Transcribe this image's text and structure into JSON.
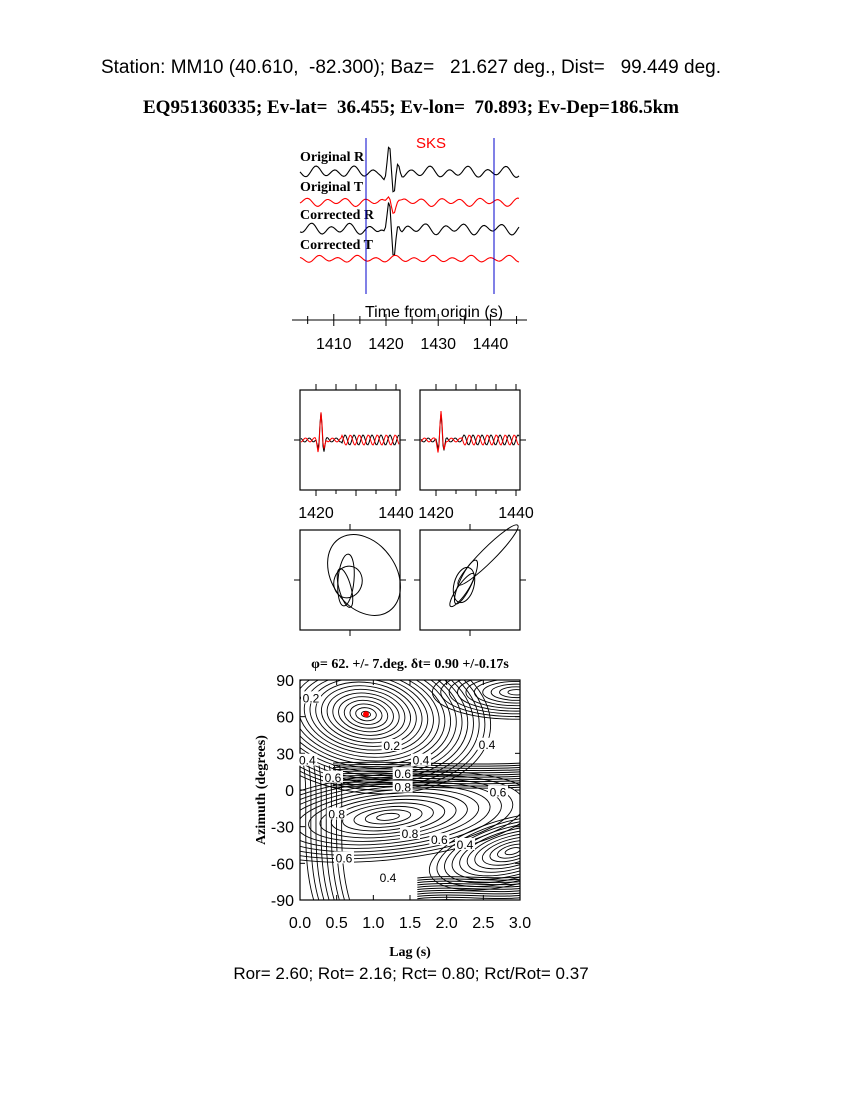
{
  "header": {
    "station_line": "Station: MM10 (40.610,  -82.300); Baz=   21.627 deg., Dist=   99.449 deg.",
    "event_line": "EQ951360335; Ev-lat=  36.455; Ev-lon=  70.893; Ev-Dep=186.5km"
  },
  "footer": {
    "ratios": "Ror= 2.60; Rot= 2.16; Rct= 0.80; Rct/Rot= 0.37"
  },
  "chart_data": [
    {
      "type": "line",
      "panel": "seismograms",
      "phase_label": "SKS",
      "xlabel": "Time from origin (s)",
      "x_ticks": [
        1410,
        1420,
        1430,
        1440
      ],
      "xlim": [
        1402,
        1447
      ],
      "window": [
        1416,
        1441
      ],
      "series": [
        {
          "name": "Original R",
          "color": "#000000"
        },
        {
          "name": "Original T",
          "color": "#ff0000"
        },
        {
          "name": "Corrected R",
          "color": "#000000"
        },
        {
          "name": "Corrected T",
          "color": "#ff0000"
        }
      ]
    },
    {
      "type": "line",
      "panel": "waveform-comparison",
      "x_ticks_left": [
        1420,
        1440
      ],
      "x_ticks_right": [
        1420,
        1440
      ],
      "xlim": [
        1416,
        1441
      ],
      "colors": {
        "black": "#000000",
        "red": "#ff0000"
      }
    },
    {
      "type": "scatter",
      "panel": "particle-motion",
      "note_panels": 2
    },
    {
      "type": "heatmap",
      "panel": "contour-map",
      "title": "φ= 62. +/- 7.deg. δt= 0.90 +/-0.17s",
      "xlabel": "Lag (s)",
      "ylabel": "Azimuth (degrees)",
      "xlim": [
        0,
        3
      ],
      "ylim": [
        -90,
        90
      ],
      "x_ticks": [
        "0.0",
        "0.5",
        "1.0",
        "1.5",
        "2.0",
        "2.5",
        "3.0"
      ],
      "y_ticks": [
        "90",
        "60",
        "30",
        "0",
        "-30",
        "-60",
        "-90"
      ],
      "best_fit": {
        "lag": 0.9,
        "azimuth": 62,
        "color": "#ff0000"
      },
      "contour_labels": [
        {
          "text": "0.2",
          "lag": 0.15,
          "azimuth": 75
        },
        {
          "text": "0.2",
          "lag": 1.25,
          "azimuth": 36
        },
        {
          "text": "0.4",
          "lag": 0.1,
          "azimuth": 24
        },
        {
          "text": "0.4",
          "lag": 1.65,
          "azimuth": 24
        },
        {
          "text": "0.4",
          "lag": 2.55,
          "azimuth": 37
        },
        {
          "text": "0.6",
          "lag": 0.45,
          "azimuth": 10
        },
        {
          "text": "0.6",
          "lag": 1.4,
          "azimuth": 13
        },
        {
          "text": "0.8",
          "lag": 1.4,
          "azimuth": 2
        },
        {
          "text": "0.6",
          "lag": 2.7,
          "azimuth": -2
        },
        {
          "text": "0.8",
          "lag": 0.5,
          "azimuth": -20
        },
        {
          "text": "0.8",
          "lag": 1.5,
          "azimuth": -36
        },
        {
          "text": "0.6",
          "lag": 1.9,
          "azimuth": -41
        },
        {
          "text": "0.4",
          "lag": 2.25,
          "azimuth": -45
        },
        {
          "text": "0.6",
          "lag": 0.6,
          "azimuth": -56
        },
        {
          "text": "0.4",
          "lag": 1.2,
          "azimuth": -72
        }
      ]
    }
  ]
}
